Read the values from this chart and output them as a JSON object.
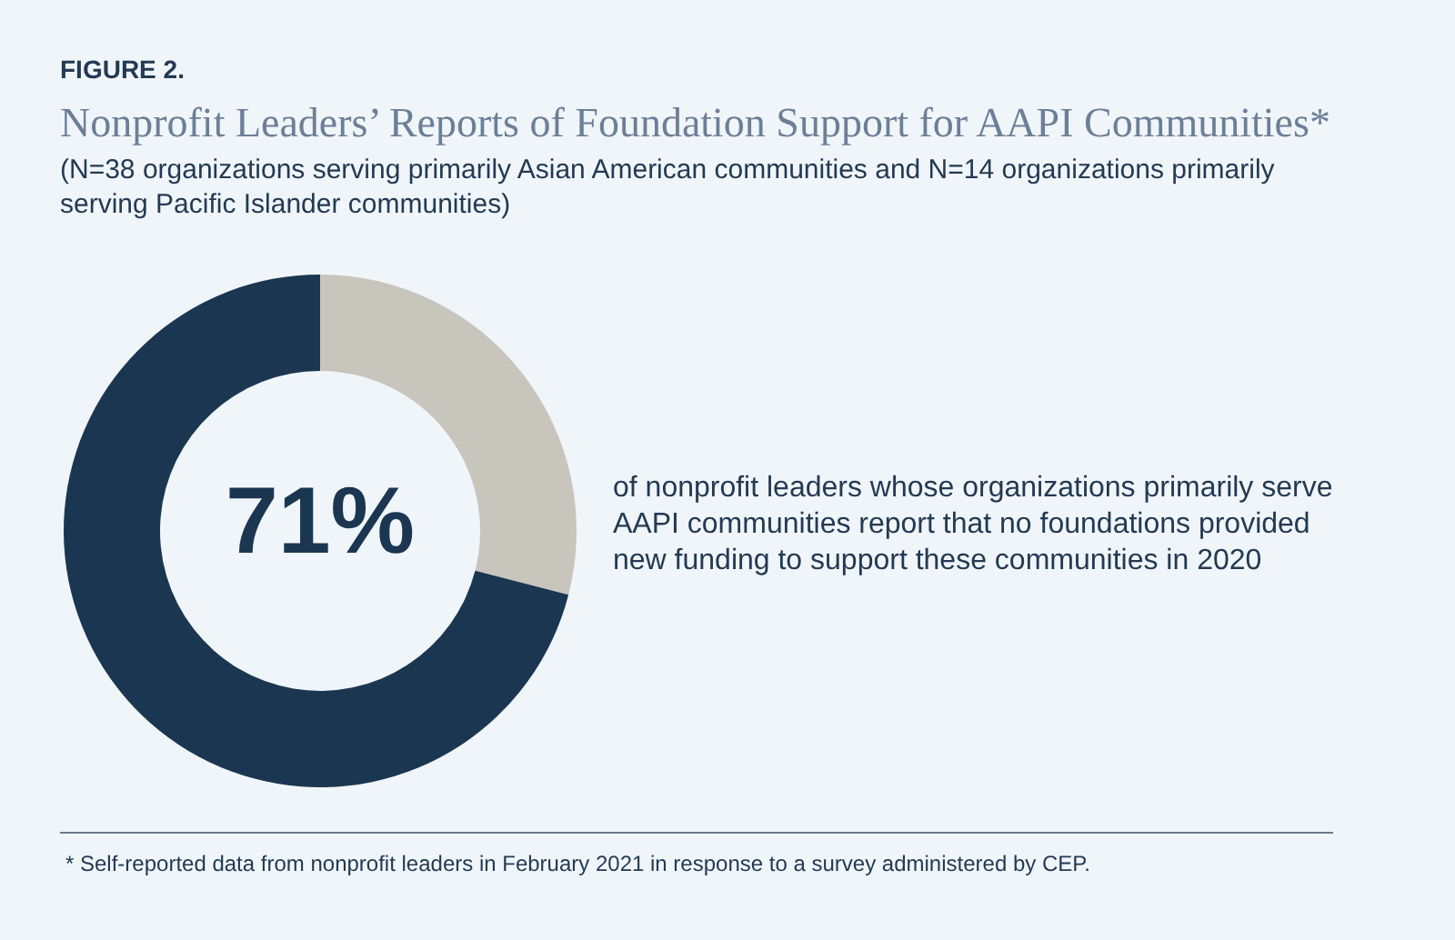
{
  "chart_data": {
    "type": "donut",
    "title": "Nonprofit Leaders’ Reports of Foundation Support for AAPI Communities*",
    "subtitle": "(N=38 organizations serving primarily Asian American communities and N=14 organizations primarily serving Pacific Islander communities)",
    "categories": [
      null,
      null
    ],
    "values": [
      29,
      71
    ],
    "colors": [
      "#c8c5bd",
      "#1b3650"
    ],
    "value_labels": [
      null,
      "71%"
    ],
    "annotations": [
      "FIGURE 2.",
      "of nonprofit leaders whose organizations primarily serve AAPI communities report that no foundations provided new funding to support these communities in 2020",
      "* Self-reported data from nonprofit leaders in February 2021 in response to a survey administered by CEP."
    ]
  }
}
